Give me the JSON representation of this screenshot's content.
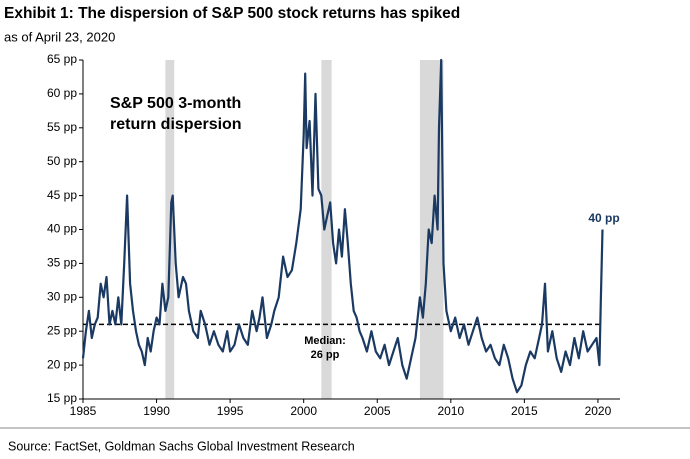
{
  "chart_data": {
    "type": "line",
    "title": "Exhibit 1: The dispersion of S&P 500 stock returns has spiked",
    "subtitle": "as of April 23, 2020",
    "inset_label": [
      "S&P 500 3-month",
      "return dispersion"
    ],
    "median_label": [
      "Median:",
      "26 pp"
    ],
    "end_label": "40 pp",
    "source": "Source: FactSet, Goldman Sachs Global Investment Research",
    "color": "#1b3a63",
    "median": 26,
    "shaded_periods": [
      [
        1990.6,
        1991.2
      ],
      [
        2001.2,
        2001.9
      ],
      [
        2007.9,
        2009.5
      ]
    ],
    "x": [
      1985.0,
      1985.2,
      1985.4,
      1985.6,
      1985.8,
      1986.0,
      1986.2,
      1986.4,
      1986.6,
      1986.8,
      1987.0,
      1987.2,
      1987.4,
      1987.6,
      1987.8,
      1988.0,
      1988.2,
      1988.4,
      1988.6,
      1988.8,
      1989.0,
      1989.2,
      1989.4,
      1989.6,
      1989.8,
      1990.0,
      1990.2,
      1990.4,
      1990.6,
      1990.8,
      1991.0,
      1991.1,
      1991.3,
      1991.5,
      1991.8,
      1992.0,
      1992.2,
      1992.5,
      1992.8,
      1993.0,
      1993.3,
      1993.6,
      1993.9,
      1994.2,
      1994.5,
      1994.8,
      1995.0,
      1995.3,
      1995.6,
      1995.9,
      1996.2,
      1996.5,
      1996.8,
      1997.0,
      1997.2,
      1997.5,
      1997.8,
      1998.0,
      1998.3,
      1998.6,
      1998.9,
      1999.2,
      1999.5,
      1999.8,
      2000.0,
      2000.1,
      2000.2,
      2000.4,
      2000.6,
      2000.8,
      2001.0,
      2001.2,
      2001.4,
      2001.6,
      2001.8,
      2002.0,
      2002.2,
      2002.4,
      2002.6,
      2002.8,
      2003.0,
      2003.2,
      2003.4,
      2003.6,
      2003.8,
      2004.0,
      2004.3,
      2004.6,
      2004.9,
      2005.2,
      2005.5,
      2005.8,
      2006.1,
      2006.4,
      2006.7,
      2007.0,
      2007.3,
      2007.6,
      2007.9,
      2008.1,
      2008.3,
      2008.5,
      2008.7,
      2008.9,
      2009.1,
      2009.2,
      2009.35,
      2009.5,
      2009.7,
      2010.0,
      2010.3,
      2010.6,
      2010.9,
      2011.2,
      2011.5,
      2011.8,
      2012.1,
      2012.4,
      2012.7,
      2013.0,
      2013.3,
      2013.6,
      2013.9,
      2014.2,
      2014.5,
      2014.8,
      2015.1,
      2015.4,
      2015.7,
      2016.0,
      2016.2,
      2016.4,
      2016.6,
      2016.9,
      2017.2,
      2017.5,
      2017.8,
      2018.1,
      2018.4,
      2018.7,
      2019.0,
      2019.3,
      2019.6,
      2019.9,
      2020.1,
      2020.2,
      2020.31
    ],
    "values": [
      21,
      25,
      28,
      24,
      26,
      27,
      32,
      30,
      33,
      26,
      28,
      26,
      30,
      26,
      35,
      45,
      32,
      28,
      25,
      23,
      22,
      20,
      24,
      22,
      25,
      27,
      26,
      32,
      28,
      30,
      44,
      45,
      35,
      30,
      33,
      32,
      28,
      25,
      24,
      28,
      26,
      23,
      25,
      23,
      22,
      25,
      22,
      23,
      26,
      24,
      23,
      28,
      25,
      27,
      30,
      24,
      26,
      28,
      30,
      36,
      33,
      34,
      38,
      43,
      54,
      63,
      52,
      56,
      45,
      60,
      46,
      45,
      40,
      42,
      44,
      38,
      35,
      40,
      36,
      43,
      38,
      32,
      28,
      27,
      25,
      24,
      22,
      25,
      22,
      21,
      23,
      20,
      22,
      24,
      20,
      18,
      21,
      24,
      30,
      27,
      32,
      40,
      38,
      45,
      40,
      55,
      65,
      35,
      28,
      25,
      27,
      24,
      26,
      23,
      25,
      27,
      24,
      22,
      23,
      21,
      20,
      23,
      21,
      18,
      16,
      17,
      20,
      22,
      21,
      24,
      26,
      32,
      22,
      25,
      21,
      19,
      22,
      20,
      24,
      21,
      25,
      22,
      23,
      24,
      20,
      30,
      40
    ],
    "xlim": [
      1985,
      2021.5
    ],
    "xticks": [
      1985,
      1990,
      1995,
      2000,
      2005,
      2010,
      2015,
      2020
    ],
    "ylim": [
      15,
      65
    ],
    "yticks": [
      {
        "value": 15,
        "label": "15 pp"
      },
      {
        "value": 20,
        "label": "20 pp"
      },
      {
        "value": 25,
        "label": "25 pp"
      },
      {
        "value": 30,
        "label": "30 pp"
      },
      {
        "value": 35,
        "label": "35 pp"
      },
      {
        "value": 40,
        "label": "40 pp"
      },
      {
        "value": 45,
        "label": "45 pp"
      },
      {
        "value": 50,
        "label": "50 pp"
      },
      {
        "value": 55,
        "label": "55 pp"
      },
      {
        "value": 60,
        "label": "60 pp"
      },
      {
        "value": 65,
        "label": "65 pp"
      }
    ]
  }
}
